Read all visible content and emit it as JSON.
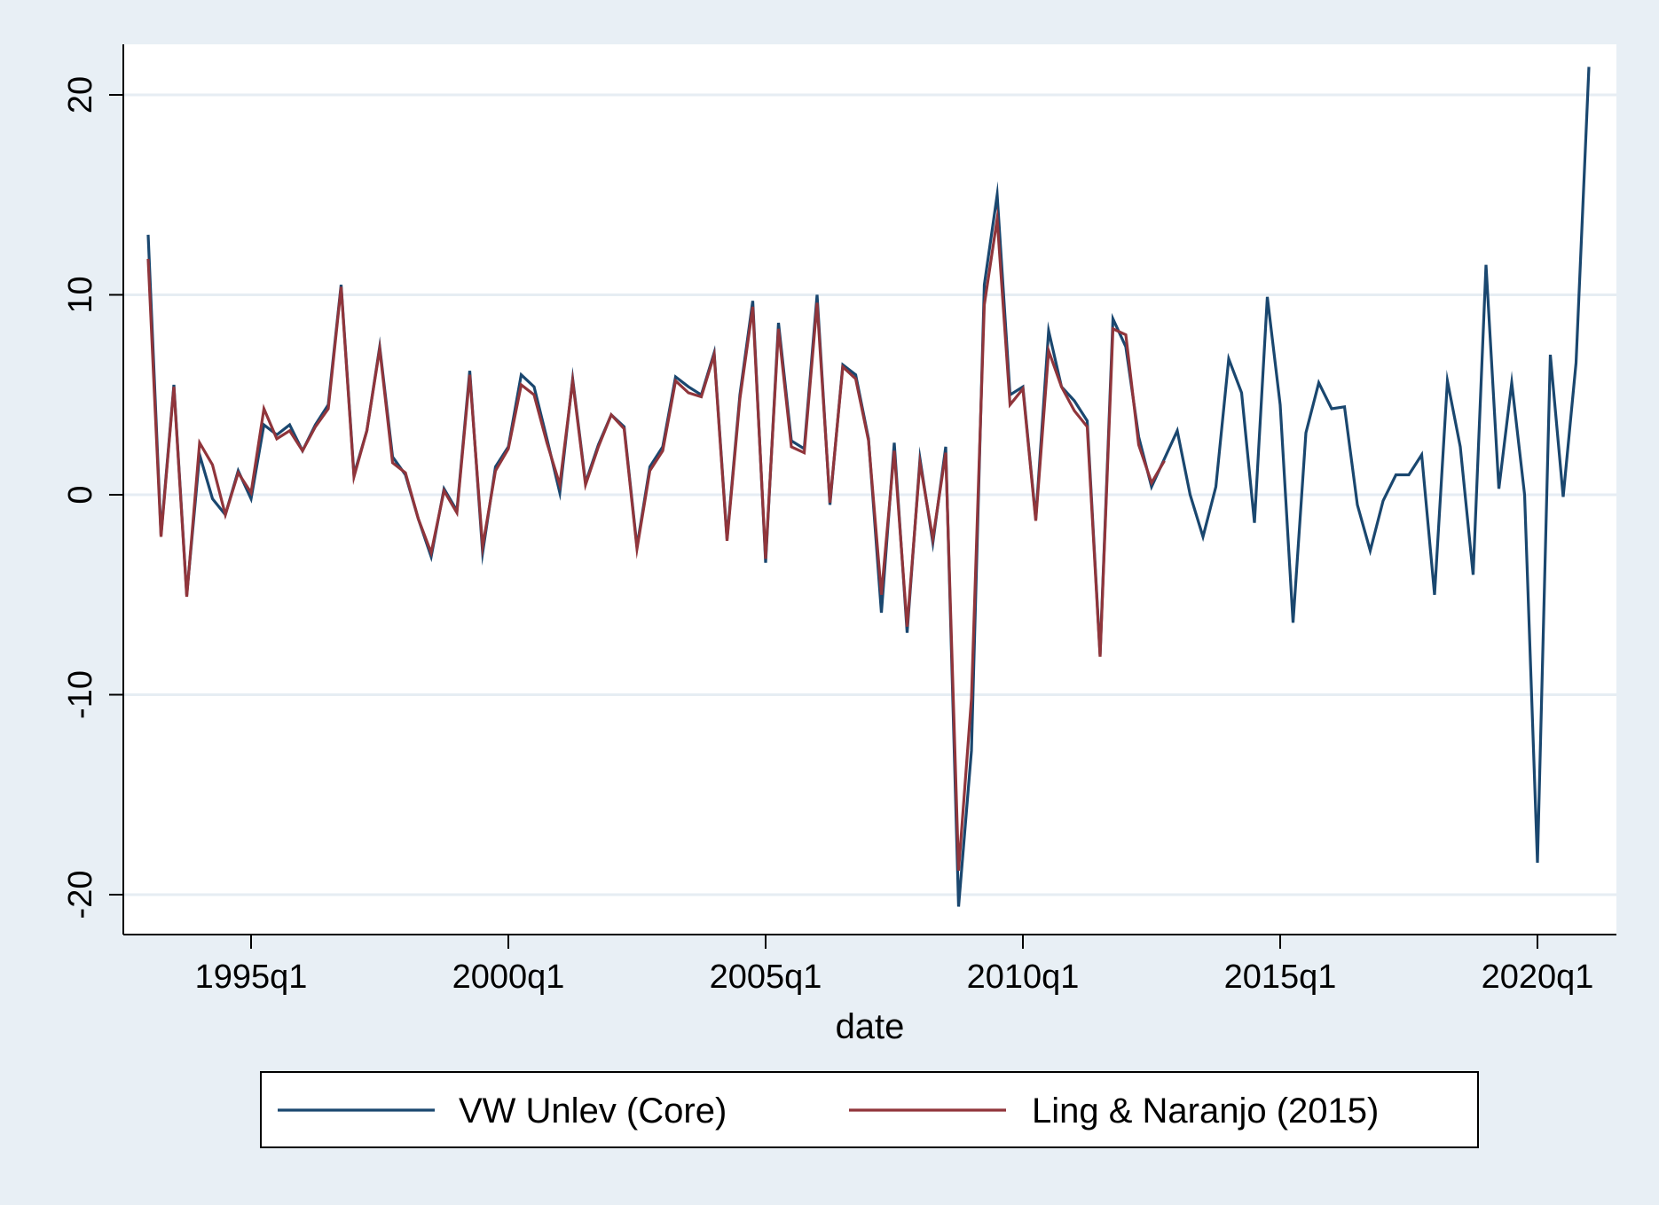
{
  "chart_data": {
    "type": "line",
    "title": "",
    "xlabel": "date",
    "ylabel": "",
    "xlim": [
      1993.0,
      2021.0
    ],
    "ylim": [
      -22,
      24
    ],
    "yticks": [
      -20,
      -10,
      0,
      10,
      20
    ],
    "ytick_labels": [
      "-20",
      "-10",
      "0",
      "10",
      "20"
    ],
    "xticks": [
      1995.0,
      2000.0,
      2005.0,
      2010.0,
      2015.0,
      2020.0
    ],
    "xtick_labels": [
      "1995q1",
      "2000q1",
      "2005q1",
      "2010q1",
      "2015q1",
      "2020q1"
    ],
    "grid": true,
    "legend_position": "bottom",
    "series": [
      {
        "name": "VW Unlev (Core)",
        "color": "#1a476f",
        "x_start": 1993.0,
        "x_step": 0.25,
        "values": [
          13.0,
          -2.0,
          5.5,
          -5.0,
          2.0,
          -0.2,
          -1.0,
          1.2,
          -0.2,
          3.5,
          3.0,
          3.5,
          2.2,
          3.5,
          4.5,
          10.5,
          1.0,
          3.2,
          7.4,
          1.9,
          1.0,
          -1.2,
          -3.1,
          0.3,
          -0.8,
          6.2,
          -2.9,
          1.4,
          2.4,
          6.0,
          5.4,
          2.8,
          0.1,
          5.8,
          0.6,
          2.5,
          4.0,
          3.4,
          -2.6,
          1.4,
          2.4,
          5.9,
          5.4,
          5.0,
          7.1,
          -2.2,
          5.0,
          9.7,
          -3.4,
          8.6,
          2.7,
          2.3,
          10.0,
          -0.5,
          6.5,
          6.0,
          2.8,
          -5.9,
          2.6,
          -6.9,
          1.8,
          -2.4,
          2.4,
          -20.6,
          -12.8,
          10.5,
          15.0,
          5.0,
          5.4,
          -1.2,
          8.2,
          5.4,
          4.7,
          3.7,
          -8.0,
          8.8,
          7.4,
          2.9,
          0.4,
          1.8,
          3.2,
          0.0,
          -2.1,
          0.4,
          6.8,
          5.1,
          -1.4,
          9.9,
          4.5,
          -6.4,
          3.1,
          5.6,
          4.3,
          4.4,
          -0.5,
          -2.8,
          -0.3,
          1.0,
          1.0,
          2.0,
          -5.0,
          5.7,
          2.4,
          -4.0,
          11.5,
          0.3,
          5.6,
          0.0,
          -18.4,
          7.0,
          -0.1,
          6.6,
          21.4
        ]
      },
      {
        "name": "Ling & Naranjo (2015)",
        "color": "#90353b",
        "x_start": 1993.0,
        "x_step": 0.25,
        "values": [
          11.8,
          -2.1,
          5.4,
          -5.1,
          2.6,
          1.5,
          -1.0,
          1.1,
          0.1,
          4.3,
          2.8,
          3.2,
          2.2,
          3.4,
          4.3,
          10.4,
          0.9,
          3.2,
          7.3,
          1.6,
          1.1,
          -1.2,
          -2.9,
          0.2,
          -0.9,
          6.0,
          -2.6,
          1.2,
          2.3,
          5.5,
          5.0,
          2.6,
          0.5,
          5.7,
          0.5,
          2.4,
          4.0,
          3.3,
          -2.7,
          1.2,
          2.2,
          5.7,
          5.1,
          4.9,
          7.0,
          -2.3,
          4.8,
          9.4,
          -3.2,
          8.3,
          2.4,
          2.1,
          9.6,
          -0.4,
          6.4,
          5.8,
          2.7,
          -5.0,
          2.2,
          -6.6,
          1.6,
          -2.2,
          2.1,
          -18.8,
          -10.2,
          9.5,
          13.8,
          4.5,
          5.3,
          -1.3,
          7.2,
          5.4,
          4.2,
          3.4,
          -8.1,
          8.3,
          8.0,
          2.5,
          0.6,
          1.7
        ]
      }
    ]
  }
}
